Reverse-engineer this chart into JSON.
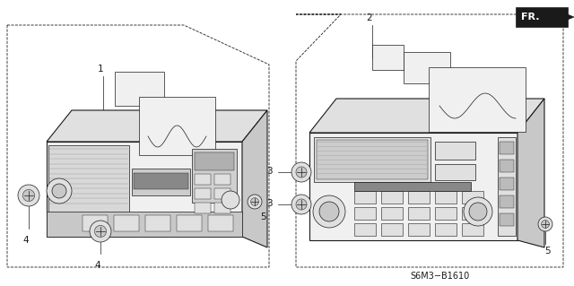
{
  "bg_color": "#ffffff",
  "line_color": "#1a1a1a",
  "fill_light": "#f0f0f0",
  "fill_medium": "#e0e0e0",
  "fill_dark": "#c8c8c8",
  "title_code": "S6M3−B1610",
  "fr_label": "FR.",
  "lw_main": 0.8,
  "lw_thin": 0.5,
  "lw_dashed": 0.6
}
